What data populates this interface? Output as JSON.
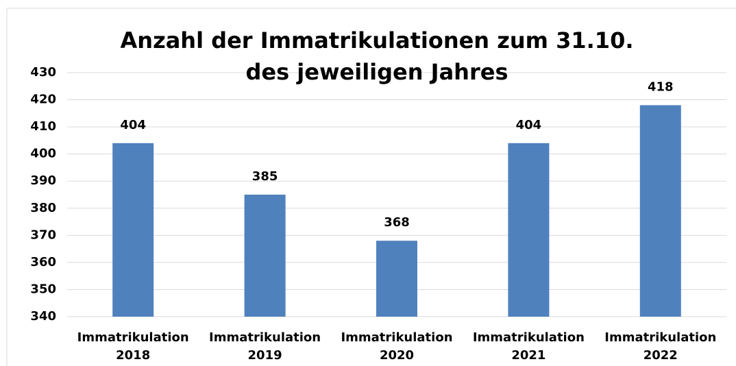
{
  "chart_data": {
    "type": "bar",
    "title": "Anzahl der Immatrikulationen zum 31.10. des jeweiligen Jahres",
    "categories": [
      "Immatrikulation 2018",
      "Immatrikulation 2019",
      "Immatrikulation 2020",
      "Immatrikulation 2021",
      "Immatrikulation 2022"
    ],
    "values": [
      404,
      385,
      368,
      404,
      418
    ],
    "color": "#4f81bd",
    "ylim": [
      340,
      430
    ],
    "yticks": [
      340,
      350,
      360,
      370,
      380,
      390,
      400,
      410,
      420,
      430
    ],
    "grid": true
  }
}
